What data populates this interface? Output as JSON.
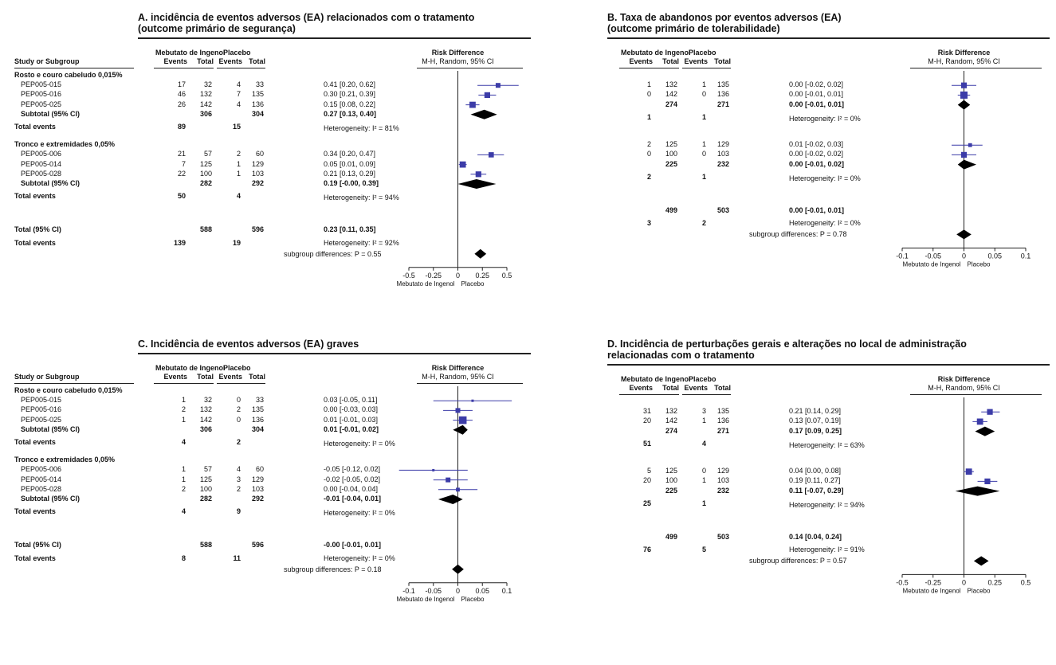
{
  "colors": {
    "point": "#3c3ca8",
    "diamond": "#000000",
    "line": "#222222",
    "ci": "#3c3ca8"
  },
  "labels": {
    "study_header": "Study or Subgroup",
    "arm1": "Mebutato de Ingenol",
    "arm2": "Placebo",
    "events": "Events",
    "total": "Total",
    "rd": "Risk Difference",
    "method": "M-H, Random, 95% CI",
    "favours_left": "Mebutato de Ingenol",
    "favours_right": "Placebo"
  },
  "chart_data": [
    {
      "type": "forest",
      "panel": "A",
      "title": [
        "A. incidência de eventos adversos (EA) relacionados com o tratamento",
        "(outcome primário de segurança)"
      ],
      "show_study": true,
      "xlim": [
        -0.5,
        0.5
      ],
      "ticks": [
        -0.5,
        -0.25,
        0,
        0.25,
        0.5
      ],
      "tick_labels": [
        "-0.5",
        "-0.25",
        "0",
        "0.25",
        "0.5"
      ],
      "subgroups": [
        {
          "label": "Rosto e couro cabeludo 0,015%",
          "studies": [
            {
              "name": "PEP005-015",
              "e1": "17",
              "n1": "32",
              "e2": "4",
              "n2": "33",
              "ci": "0.41 [0.20, 0.62]",
              "est": 0.41,
              "lo": 0.2,
              "hi": 0.62,
              "w": 1.0
            },
            {
              "name": "PEP005-016",
              "e1": "46",
              "n1": "132",
              "e2": "7",
              "n2": "135",
              "ci": "0.30 [0.21, 0.39]",
              "est": 0.3,
              "lo": 0.21,
              "hi": 0.39,
              "w": 1.2
            },
            {
              "name": "PEP005-025",
              "e1": "26",
              "n1": "142",
              "e2": "4",
              "n2": "136",
              "ci": "0.15 [0.08, 0.22]",
              "est": 0.15,
              "lo": 0.08,
              "hi": 0.22,
              "w": 1.3
            }
          ],
          "subtotal": {
            "label": "Subtotal (95% CI)",
            "n1": "306",
            "n2": "304",
            "ci": "0.27 [0.13, 0.40]",
            "est": 0.27,
            "lo": 0.13,
            "hi": 0.4
          },
          "events": {
            "label": "Total events",
            "e1": "89",
            "e2": "15"
          },
          "het": "Heterogeneity: I² = 81%"
        },
        {
          "label": "Tronco e extremidades 0,05%",
          "studies": [
            {
              "name": "PEP005-006",
              "e1": "21",
              "n1": "57",
              "e2": "2",
              "n2": "60",
              "ci": "0.34 [0.20, 0.47]",
              "est": 0.34,
              "lo": 0.2,
              "hi": 0.47,
              "w": 1.1
            },
            {
              "name": "PEP005-014",
              "e1": "7",
              "n1": "125",
              "e2": "1",
              "n2": "129",
              "ci": "0.05 [0.01, 0.09]",
              "est": 0.05,
              "lo": 0.01,
              "hi": 0.09,
              "w": 1.3
            },
            {
              "name": "PEP005-028",
              "e1": "22",
              "n1": "100",
              "e2": "1",
              "n2": "103",
              "ci": "0.21 [0.13, 0.29]",
              "est": 0.21,
              "lo": 0.13,
              "hi": 0.29,
              "w": 1.2
            }
          ],
          "subtotal": {
            "label": "Subtotal (95% CI)",
            "n1": "282",
            "n2": "292",
            "ci": "0.19 [-0.00, 0.39]",
            "est": 0.19,
            "lo": 0.0,
            "hi": 0.39
          },
          "events": {
            "label": "Total events",
            "e1": "50",
            "e2": "4"
          },
          "het": "Heterogeneity: I² = 94%"
        }
      ],
      "total": {
        "label": "Total (95% CI)",
        "n1": "588",
        "n2": "596",
        "ci": "0.23 [0.11, 0.35]",
        "est": 0.23,
        "lo": 0.11,
        "hi": 0.35
      },
      "total_events": {
        "label": "Total events",
        "e1": "139",
        "e2": "19"
      },
      "total_het": "Heterogeneity: I² = 92%",
      "subgroup_diff": "subgroup differences: P = 0.55",
      "subgroup_diff_est": 0.23
    },
    {
      "type": "forest",
      "panel": "B",
      "title": [
        "B. Taxa de abandonos por eventos adversos (EA)",
        "(outcome primário de tolerabilidade)"
      ],
      "show_study": false,
      "xlim": [
        -0.1,
        0.1
      ],
      "ticks": [
        -0.1,
        -0.05,
        0,
        0.05,
        0.1
      ],
      "tick_labels": [
        "-0.1",
        "-0.05",
        "0",
        "0.05",
        "0.1"
      ],
      "subgroups": [
        {
          "studies": [
            {
              "e1": "1",
              "n1": "132",
              "e2": "1",
              "n2": "135",
              "ci": "0.00 [-0.02, 0.02]",
              "est": 0.0,
              "lo": -0.02,
              "hi": 0.02,
              "w": 1.2
            },
            {
              "e1": "0",
              "n1": "142",
              "e2": "0",
              "n2": "136",
              "ci": "0.00 [-0.01, 0.01]",
              "est": 0.0,
              "lo": -0.01,
              "hi": 0.01,
              "w": 1.5
            }
          ],
          "subtotal": {
            "n1": "274",
            "n2": "271",
            "ci": "0.00 [-0.01, 0.01]",
            "est": 0.0,
            "lo": -0.01,
            "hi": 0.01
          },
          "events": {
            "e1": "1",
            "e2": "1"
          },
          "het": "Heterogeneity: I² = 0%"
        },
        {
          "studies": [
            {
              "e1": "2",
              "n1": "125",
              "e2": "1",
              "n2": "129",
              "ci": "0.01 [-0.02, 0.03]",
              "est": 0.01,
              "lo": -0.02,
              "hi": 0.03,
              "w": 0.8
            },
            {
              "e1": "0",
              "n1": "100",
              "e2": "0",
              "n2": "103",
              "ci": "0.00 [-0.02, 0.02]",
              "est": 0.0,
              "lo": -0.02,
              "hi": 0.02,
              "w": 1.2
            }
          ],
          "subtotal": {
            "n1": "225",
            "n2": "232",
            "ci": "0.00 [-0.01, 0.02]",
            "est": 0.0,
            "lo": -0.01,
            "hi": 0.02
          },
          "events": {
            "e1": "2",
            "e2": "1"
          },
          "het": "Heterogeneity: I² = 0%"
        }
      ],
      "total": {
        "n1": "499",
        "n2": "503",
        "ci": "0.00 [-0.01, 0.01]",
        "est": 0.0,
        "lo": -0.01,
        "hi": 0.01
      },
      "total_events": {
        "e1": "3",
        "e2": "2"
      },
      "total_het": "Heterogeneity: I² = 0%",
      "subgroup_diff": "subgroup differences: P = 0.78",
      "subgroup_diff_est": 0.0
    },
    {
      "type": "forest",
      "panel": "C",
      "title": [
        "C. Incidência de eventos adversos (EA) graves"
      ],
      "show_study": true,
      "xlim": [
        -0.1,
        0.1
      ],
      "ticks": [
        -0.1,
        -0.05,
        0,
        0.05,
        0.1
      ],
      "tick_labels": [
        "-0.1",
        "-0.05",
        "0",
        "0.05",
        "0.1"
      ],
      "subgroups": [
        {
          "label": "Rosto e couro cabeludo 0,015%",
          "studies": [
            {
              "name": "PEP005-015",
              "e1": "1",
              "n1": "32",
              "e2": "0",
              "n2": "33",
              "ci": "0.03 [-0.05, 0.11]",
              "est": 0.03,
              "lo": -0.05,
              "hi": 0.11,
              "w": 0.5
            },
            {
              "name": "PEP005-016",
              "e1": "2",
              "n1": "132",
              "e2": "2",
              "n2": "135",
              "ci": "0.00 [-0.03, 0.03]",
              "est": 0.0,
              "lo": -0.03,
              "hi": 0.03,
              "w": 1.0
            },
            {
              "name": "PEP005-025",
              "e1": "1",
              "n1": "142",
              "e2": "0",
              "n2": "136",
              "ci": "0.01 [-0.01, 0.03]",
              "est": 0.01,
              "lo": -0.01,
              "hi": 0.03,
              "w": 1.6
            }
          ],
          "subtotal": {
            "label": "Subtotal (95% CI)",
            "n1": "306",
            "n2": "304",
            "ci": "0.01 [-0.01, 0.02]",
            "est": 0.01,
            "lo": -0.01,
            "hi": 0.02
          },
          "events": {
            "label": "Total events",
            "e1": "4",
            "e2": "2"
          },
          "het": "Heterogeneity: I² = 0%"
        },
        {
          "label": "Tronco e extremidades 0,05%",
          "studies": [
            {
              "name": "PEP005-006",
              "e1": "1",
              "n1": "57",
              "e2": "4",
              "n2": "60",
              "ci": "-0.05 [-0.12, 0.02]",
              "est": -0.05,
              "lo": -0.12,
              "hi": 0.02,
              "w": 0.5
            },
            {
              "name": "PEP005-014",
              "e1": "1",
              "n1": "125",
              "e2": "3",
              "n2": "129",
              "ci": "-0.02 [-0.05, 0.02]",
              "est": -0.02,
              "lo": -0.05,
              "hi": 0.02,
              "w": 1.0
            },
            {
              "name": "PEP005-028",
              "e1": "2",
              "n1": "100",
              "e2": "2",
              "n2": "103",
              "ci": "0.00 [-0.04, 0.04]",
              "est": 0.0,
              "lo": -0.04,
              "hi": 0.04,
              "w": 0.8
            }
          ],
          "subtotal": {
            "label": "Subtotal (95% CI)",
            "n1": "282",
            "n2": "292",
            "ci": "-0.01 [-0.04, 0.01]",
            "est": -0.01,
            "lo": -0.04,
            "hi": 0.01
          },
          "events": {
            "label": "Total events",
            "e1": "4",
            "e2": "9"
          },
          "het": "Heterogeneity: I² = 0%"
        }
      ],
      "total": {
        "label": "Total (95% CI)",
        "n1": "588",
        "n2": "596",
        "ci": "-0.00 [-0.01, 0.01]",
        "est": 0.0,
        "lo": -0.01,
        "hi": 0.01
      },
      "total_events": {
        "label": "Total events",
        "e1": "8",
        "e2": "11"
      },
      "total_het": "Heterogeneity: I² = 0%",
      "subgroup_diff": "subgroup differences: P = 0.18",
      "subgroup_diff_est": 0.0
    },
    {
      "type": "forest",
      "panel": "D",
      "title": [
        "D. Incidência de perturbações gerais e alterações no local de administração",
        "relacionadas com o tratamento"
      ],
      "show_study": false,
      "xlim": [
        -0.5,
        0.5
      ],
      "ticks": [
        -0.5,
        -0.25,
        0,
        0.25,
        0.5
      ],
      "tick_labels": [
        "-0.5",
        "-0.25",
        "0",
        "0.25",
        "0.5"
      ],
      "subgroups": [
        {
          "studies": [
            {
              "e1": "31",
              "n1": "132",
              "e2": "3",
              "n2": "135",
              "ci": "0.21 [0.14, 0.29]",
              "est": 0.21,
              "lo": 0.14,
              "hi": 0.29,
              "w": 1.2
            },
            {
              "e1": "20",
              "n1": "142",
              "e2": "1",
              "n2": "136",
              "ci": "0.13 [0.07, 0.19]",
              "est": 0.13,
              "lo": 0.07,
              "hi": 0.19,
              "w": 1.3
            }
          ],
          "subtotal": {
            "n1": "274",
            "n2": "271",
            "ci": "0.17 [0.09, 0.25]",
            "est": 0.17,
            "lo": 0.09,
            "hi": 0.25
          },
          "events": {
            "e1": "51",
            "e2": "4"
          },
          "het": "Heterogeneity: I² = 63%"
        },
        {
          "studies": [
            {
              "e1": "5",
              "n1": "125",
              "e2": "0",
              "n2": "129",
              "ci": "0.04 [0.00, 0.08]",
              "est": 0.04,
              "lo": 0.0,
              "hi": 0.08,
              "w": 1.3
            },
            {
              "e1": "20",
              "n1": "100",
              "e2": "1",
              "n2": "103",
              "ci": "0.19 [0.11, 0.27]",
              "est": 0.19,
              "lo": 0.11,
              "hi": 0.27,
              "w": 1.2
            }
          ],
          "subtotal": {
            "n1": "225",
            "n2": "232",
            "ci": "0.11 [-0.07, 0.29]",
            "est": 0.11,
            "lo": -0.07,
            "hi": 0.29
          },
          "events": {
            "e1": "25",
            "e2": "1"
          },
          "het": "Heterogeneity: I² = 94%"
        }
      ],
      "total": {
        "n1": "499",
        "n2": "503",
        "ci": "0.14 [0.04, 0.24]",
        "est": 0.14,
        "lo": 0.04,
        "hi": 0.24
      },
      "total_events": {
        "e1": "76",
        "e2": "5"
      },
      "total_het": "Heterogeneity: I² = 91%",
      "subgroup_diff": "subgroup differences: P = 0.57",
      "subgroup_diff_est": 0.14
    }
  ]
}
